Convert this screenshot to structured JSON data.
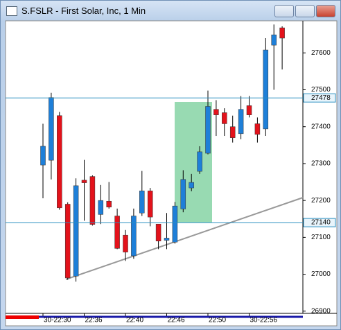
{
  "chart_data": {
    "type": "candlestick",
    "title": "S.FSLR - First Solar, Inc, 1 Min",
    "categories": [
      "30-22:30",
      null,
      null,
      null,
      null,
      "22:36",
      null,
      null,
      null,
      null,
      "22:40",
      null,
      null,
      null,
      null,
      "22:46",
      null,
      null,
      null,
      null,
      "22:50",
      null,
      null,
      null,
      null,
      "30-22:56",
      null,
      null,
      null,
      null
    ],
    "open": [
      27296,
      27309,
      27430,
      27190,
      26995,
      27255,
      27265,
      27162,
      27198,
      27158,
      27106,
      27050,
      27166,
      27226,
      27136,
      27092,
      27087,
      27177,
      27234,
      27279,
      27328,
      27447,
      27438,
      27400,
      27381,
      27457,
      27408,
      27394,
      27621,
      27668
    ],
    "high": [
      27408,
      27492,
      27440,
      27195,
      27260,
      27310,
      27268,
      27242,
      27250,
      27178,
      27120,
      27178,
      27280,
      27234,
      27136,
      27166,
      27196,
      27282,
      27272,
      27347,
      27498,
      27472,
      27450,
      27430,
      27483,
      27483,
      27425,
      27640,
      27677,
      27672
    ],
    "low": [
      27206,
      27257,
      27175,
      26985,
      26980,
      27145,
      27132,
      27136,
      27178,
      27068,
      27036,
      27042,
      27158,
      27130,
      27068,
      27068,
      27083,
      27168,
      27225,
      27272,
      27325,
      27375,
      27375,
      27357,
      27366,
      27425,
      27357,
      27375,
      27500,
      27555
    ],
    "close": [
      27347,
      27479,
      27180,
      26990,
      27240,
      27248,
      27135,
      27200,
      27182,
      27070,
      27060,
      27158,
      27226,
      27155,
      27090,
      27098,
      27185,
      27257,
      27249,
      27332,
      27455,
      27432,
      27408,
      27370,
      27447,
      27432,
      27379,
      27608,
      27649,
      27640
    ],
    "up_color": "#1e7fd8",
    "down_color": "#e3121b",
    "ylim": [
      26894,
      27687
    ],
    "yticks": [
      26900,
      27000,
      27100,
      27200,
      27300,
      27400,
      27500,
      27600
    ],
    "hlines": [
      27478,
      27140
    ],
    "hline_color": "#2a8fc0"
  }
}
